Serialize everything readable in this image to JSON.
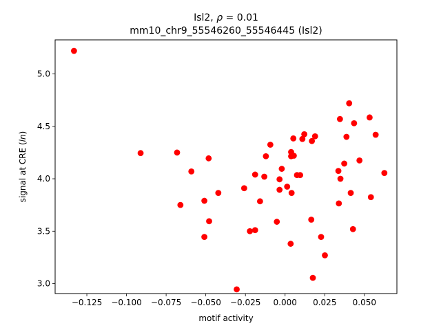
{
  "chart_data": {
    "type": "scatter",
    "title_line1_text": "Isl2, ",
    "title_line1_rho": "ρ",
    "title_line1_value": " = 0.01",
    "title_line2": "mm10_chr9_55546260_55546445 (Isl2)",
    "xlabel": "motif activity",
    "ylabel_prefix": "signal at CRE (",
    "ylabel_italic": "ln",
    "ylabel_suffix": ")",
    "xlim": [
      -0.145,
      0.0705
    ],
    "ylim": [
      2.905,
      5.325
    ],
    "x_ticks": [
      -0.125,
      -0.1,
      -0.075,
      -0.05,
      -0.025,
      0.0,
      0.025,
      0.05
    ],
    "x_tick_labels": [
      "−0.125",
      "−0.100",
      "−0.075",
      "−0.050",
      "−0.025",
      "0.000",
      "0.025",
      "0.050"
    ],
    "y_ticks": [
      3.0,
      3.5,
      4.0,
      4.5,
      5.0
    ],
    "y_tick_labels": [
      "3.0",
      "3.5",
      "4.0",
      "4.5",
      "5.0"
    ],
    "marker_color": "#ff0000",
    "points": [
      {
        "x": -0.1331,
        "y": 5.22
      },
      {
        "x": -0.0911,
        "y": 4.245
      },
      {
        "x": -0.0681,
        "y": 4.25
      },
      {
        "x": -0.066,
        "y": 3.75
      },
      {
        "x": -0.0591,
        "y": 4.07
      },
      {
        "x": -0.0509,
        "y": 3.79
      },
      {
        "x": -0.0509,
        "y": 3.445
      },
      {
        "x": -0.0482,
        "y": 4.195
      },
      {
        "x": -0.0479,
        "y": 3.595
      },
      {
        "x": -0.0421,
        "y": 3.865
      },
      {
        "x": -0.0305,
        "y": 2.945
      },
      {
        "x": -0.0258,
        "y": 3.91
      },
      {
        "x": -0.0222,
        "y": 3.5
      },
      {
        "x": -0.0189,
        "y": 4.04
      },
      {
        "x": -0.0189,
        "y": 3.51
      },
      {
        "x": -0.0158,
        "y": 3.785
      },
      {
        "x": -0.0131,
        "y": 4.02
      },
      {
        "x": -0.0121,
        "y": 4.215
      },
      {
        "x": -0.0093,
        "y": 4.325
      },
      {
        "x": -0.0052,
        "y": 3.59
      },
      {
        "x": -0.0035,
        "y": 3.895
      },
      {
        "x": -0.0035,
        "y": 3.995
      },
      {
        "x": -0.0021,
        "y": 4.095
      },
      {
        "x": 0.0013,
        "y": 3.925
      },
      {
        "x": 0.0035,
        "y": 3.38
      },
      {
        "x": 0.0038,
        "y": 4.255
      },
      {
        "x": 0.0038,
        "y": 4.215
      },
      {
        "x": 0.0041,
        "y": 3.865
      },
      {
        "x": 0.0052,
        "y": 4.385
      },
      {
        "x": 0.0055,
        "y": 4.22
      },
      {
        "x": 0.0075,
        "y": 4.035
      },
      {
        "x": 0.0095,
        "y": 4.035
      },
      {
        "x": 0.0109,
        "y": 4.38
      },
      {
        "x": 0.0121,
        "y": 4.425
      },
      {
        "x": 0.0165,
        "y": 3.61
      },
      {
        "x": 0.0169,
        "y": 4.36
      },
      {
        "x": 0.0175,
        "y": 3.055
      },
      {
        "x": 0.0189,
        "y": 4.405
      },
      {
        "x": 0.0227,
        "y": 3.445
      },
      {
        "x": 0.0251,
        "y": 3.27
      },
      {
        "x": 0.0336,
        "y": 4.075
      },
      {
        "x": 0.0339,
        "y": 3.765
      },
      {
        "x": 0.0346,
        "y": 4.57
      },
      {
        "x": 0.0349,
        "y": 4.0
      },
      {
        "x": 0.0373,
        "y": 4.145
      },
      {
        "x": 0.0387,
        "y": 4.4
      },
      {
        "x": 0.0404,
        "y": 4.72
      },
      {
        "x": 0.0414,
        "y": 3.865
      },
      {
        "x": 0.0428,
        "y": 3.52
      },
      {
        "x": 0.0435,
        "y": 4.53
      },
      {
        "x": 0.0469,
        "y": 4.175
      },
      {
        "x": 0.0533,
        "y": 4.585
      },
      {
        "x": 0.0541,
        "y": 3.825
      },
      {
        "x": 0.0571,
        "y": 4.42
      },
      {
        "x": 0.0626,
        "y": 4.055
      }
    ]
  }
}
